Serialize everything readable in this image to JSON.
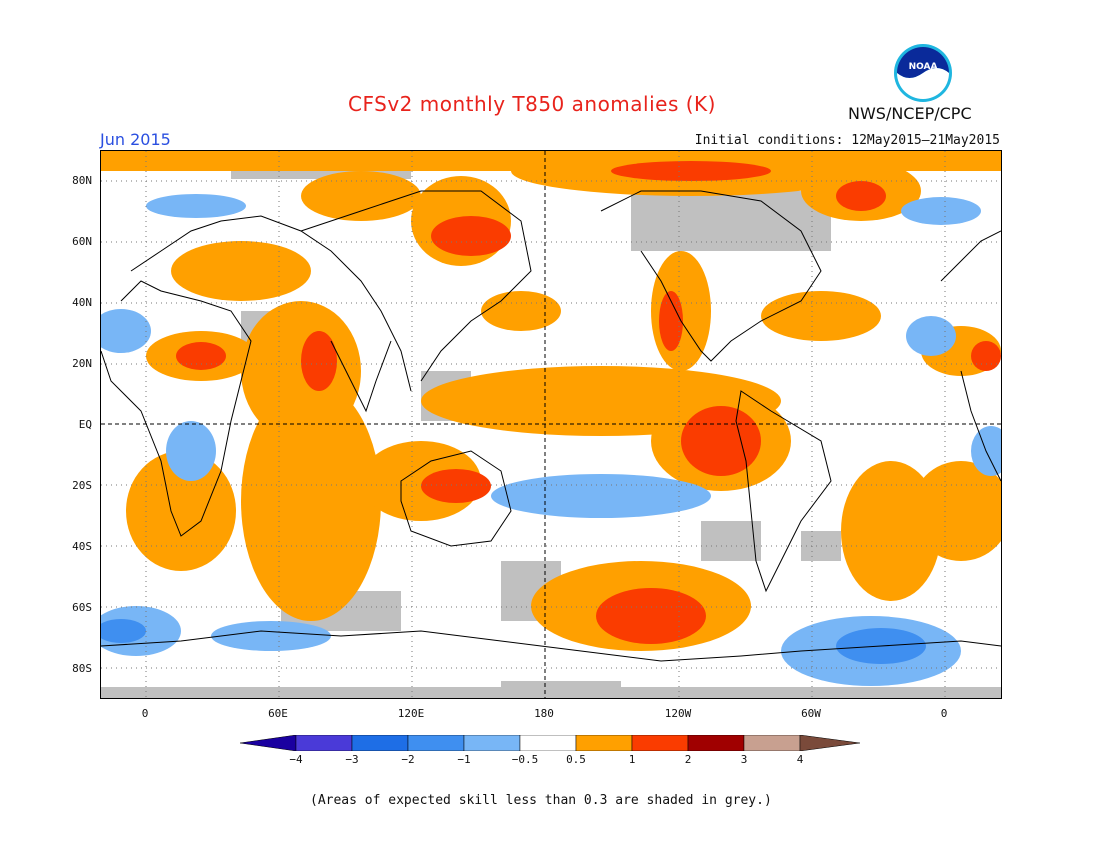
{
  "header": {
    "title": "CFSv2 monthly T850 anomalies (K)",
    "month": "Jun 2015",
    "initial_conditions": "Initial conditions: 12May2015–21May2015",
    "agency": "NWS/NCEP/CPC",
    "logo_text": "NOAA"
  },
  "map": {
    "lat_labels": [
      "80N",
      "60N",
      "40N",
      "20N",
      "EQ",
      "20S",
      "40S",
      "60S",
      "80S"
    ],
    "lon_labels": [
      "0",
      "60E",
      "120E",
      "180",
      "120W",
      "60W",
      "0"
    ]
  },
  "colorbar": {
    "labels": [
      "−4",
      "−3",
      "−2",
      "−1",
      "−0.5",
      "0.5",
      "1",
      "2",
      "3",
      "4"
    ],
    "colors": [
      "#1a00a0",
      "#4a3ad8",
      "#1e6ee6",
      "#3f8ff0",
      "#78b6f6",
      "#ffffff",
      "#ffa000",
      "#fa3c00",
      "#a00000",
      "#c8a090",
      "#7a4a3a"
    ]
  },
  "colors": {
    "skill_grey": "#c0c0c0",
    "anom_05_1": "#ffa000",
    "anom_1_2": "#fa3c00",
    "neg_05_1": "#78b6f6",
    "neg_1_2": "#3f8ff0"
  },
  "footer": {
    "note": "(Areas of expected skill less than 0.3 are shaded in grey.)"
  }
}
